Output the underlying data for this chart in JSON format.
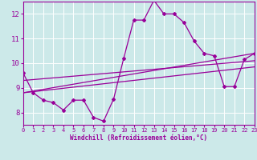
{
  "xlabel": "Windchill (Refroidissement éolien,°C)",
  "xlim": [
    0,
    23
  ],
  "ylim": [
    7.5,
    12.5
  ],
  "yticks": [
    8,
    9,
    10,
    11,
    12
  ],
  "xticks": [
    0,
    1,
    2,
    3,
    4,
    5,
    6,
    7,
    8,
    9,
    10,
    11,
    12,
    13,
    14,
    15,
    16,
    17,
    18,
    19,
    20,
    21,
    22,
    23
  ],
  "bg_color": "#cce9e9",
  "grid_color": "#ffffff",
  "line_color": "#990099",
  "line1_x": [
    0,
    1,
    2,
    3,
    4,
    5,
    6,
    7,
    8,
    9,
    10,
    11,
    12,
    13,
    14,
    15,
    16,
    17,
    18,
    19,
    20,
    21,
    22,
    23
  ],
  "line1_y": [
    9.6,
    8.8,
    8.5,
    8.4,
    8.1,
    8.5,
    8.5,
    7.8,
    7.65,
    8.55,
    10.2,
    11.75,
    11.75,
    12.55,
    12.0,
    12.0,
    11.65,
    10.9,
    10.4,
    10.3,
    9.05,
    9.05,
    10.15,
    10.4
  ],
  "line2_x": [
    0,
    23
  ],
  "line2_y": [
    8.8,
    10.4
  ],
  "line3_x": [
    0,
    23
  ],
  "line3_y": [
    8.8,
    9.85
  ],
  "line4_x": [
    0,
    23
  ],
  "line4_y": [
    9.3,
    10.1
  ]
}
